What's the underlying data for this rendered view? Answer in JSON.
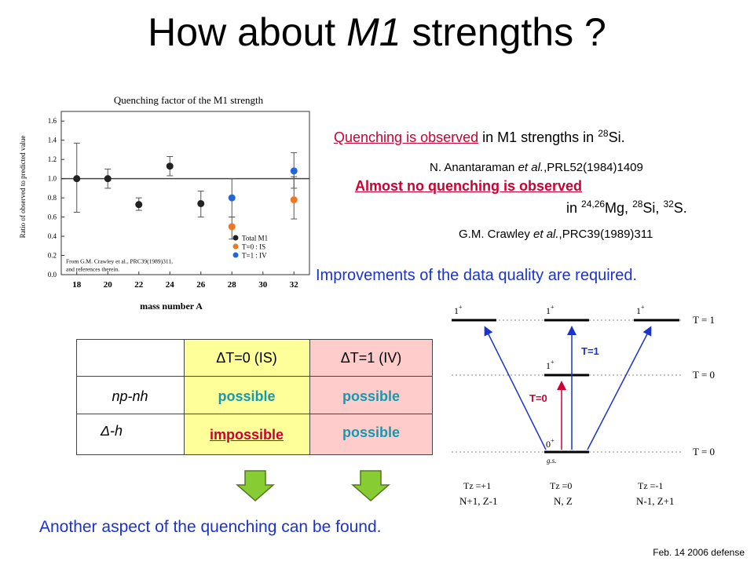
{
  "title": {
    "pre": "How about ",
    "em": "M1",
    "post": " strengths ?"
  },
  "text1": {
    "highlight": "Quenching is observed",
    "rest": " in M1 strengths in ",
    "sup": "28",
    "tail": "Si.",
    "cite_pre": "N. Anantaraman ",
    "cite_em": "et al.",
    "cite_post": ",PRL52(1984)1409"
  },
  "text2": {
    "highlight": "Almost no quenching is observed",
    "line2_pre": "in ",
    "sup1": "24,26",
    "mg": "Mg, ",
    "sup2": "28",
    "si": "Si, ",
    "sup3": "32",
    "s": "S.",
    "cite_pre": "G.M. Crawley ",
    "cite_em": "et al.",
    "cite_post": ",PRC39(1989)311"
  },
  "improvement": "Improvements of the data quality are required.",
  "conclusion": "Another aspect of the quenching can be found.",
  "footer": "Feb. 14 2006 defense",
  "table": {
    "col_is": "ΔT=0 (IS)",
    "col_iv": "ΔT=1 (IV)",
    "row1": "np-nh",
    "row2": "Δ-h",
    "r1_is": "possible",
    "r1_iv": "possible",
    "r2_is": "impossible",
    "r2_iv": "possible",
    "colors": {
      "is_bg": "#ffff99",
      "iv_bg": "#ffcccc"
    }
  },
  "chart_data": {
    "type": "scatter",
    "title": "Quenching factor of the M1 strength",
    "xlabel": "mass number A",
    "ylabel": "Ratio of observed to predicted value",
    "xlim": [
      17,
      33
    ],
    "ylim": [
      0,
      1.7
    ],
    "xticks": [
      18,
      20,
      22,
      24,
      26,
      28,
      30,
      32
    ],
    "yticks": [
      0.0,
      0.2,
      0.4,
      0.6,
      0.8,
      1.0,
      1.2,
      1.4,
      1.6
    ],
    "reference_line": 1.0,
    "series": [
      {
        "name": "Total M1",
        "color": "#222222",
        "points": [
          {
            "x": 18,
            "y": 1.0,
            "lo": 0.65,
            "hi": 1.37
          },
          {
            "x": 20,
            "y": 1.0,
            "lo": 0.9,
            "hi": 1.1
          },
          {
            "x": 22,
            "y": 0.73,
            "lo": 0.67,
            "hi": 0.8
          },
          {
            "x": 24,
            "y": 1.13,
            "lo": 1.03,
            "hi": 1.23
          },
          {
            "x": 26,
            "y": 0.74,
            "lo": 0.6,
            "hi": 0.87
          }
        ]
      },
      {
        "name": "T=0 : IS",
        "color": "#ee7722",
        "points": [
          {
            "x": 28,
            "y": 0.5,
            "lo": 0.37,
            "hi": 0.6
          },
          {
            "x": 32,
            "y": 0.78,
            "lo": 0.58,
            "hi": 1.02
          }
        ]
      },
      {
        "name": "T=1 : IV",
        "color": "#2266dd",
        "points": [
          {
            "x": 28,
            "y": 0.8,
            "lo": 0.6,
            "hi": 1.0
          },
          {
            "x": 32,
            "y": 1.08,
            "lo": 0.9,
            "hi": 1.27
          }
        ]
      }
    ],
    "legend": [
      "Total M1",
      "T=0 : IS",
      "T=1 : IV"
    ],
    "note_line1": "From G.M. Crawley et al., PRC39(1989)311,",
    "note_line2": "and references therein."
  },
  "levels": {
    "labels_left": [
      "1",
      "+"
    ],
    "t1": "T = 1",
    "t0a": "T = 0",
    "t0b": "T = 0",
    "arrow_t1": "T=1",
    "arrow_t0": "T=0",
    "gs": "g.s.",
    "zero_plus": "0",
    "one": "1",
    "plus": "+",
    "col1_tz": "Tz =+1",
    "col2_tz": "Tz =0",
    "col3_tz": "Tz =-1",
    "col1_n": "N+1, Z-1",
    "col2_n": "N, Z",
    "col3_n": "N-1, Z+1"
  }
}
